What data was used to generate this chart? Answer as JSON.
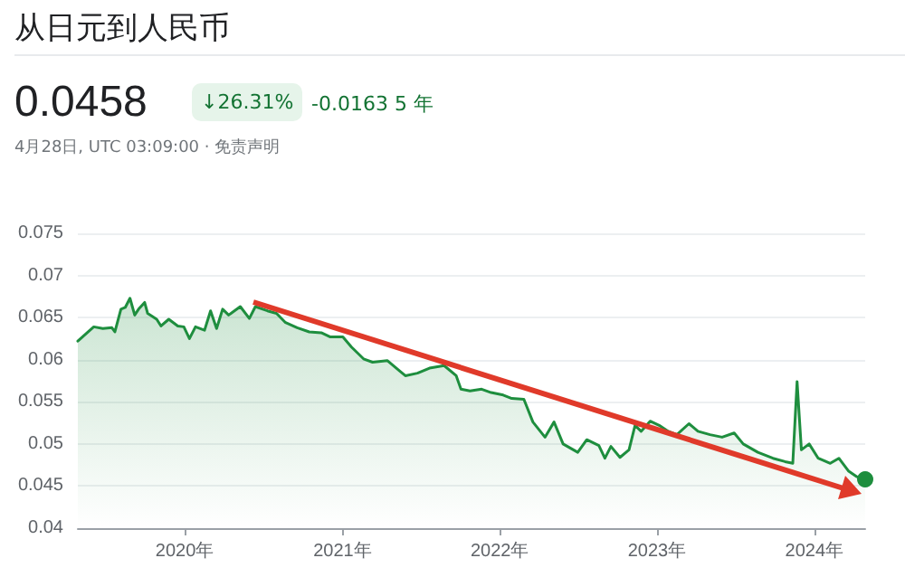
{
  "chart_data": {
    "type": "area",
    "title": "从日元到人民币",
    "annotations": [
      "0.0458",
      "↓26.31%",
      "-0.0163 5 年",
      "4月28日, UTC 03:09:00 · 免责声明"
    ],
    "x": [
      "2019-04-28",
      "2019-05-22",
      "2019-06-04",
      "2019-06-25",
      "2019-07-16",
      "2019-07-23",
      "2019-08-06",
      "2019-08-16",
      "2019-08-27",
      "2019-09-07",
      "2019-09-16",
      "2019-09-30",
      "2019-10-07",
      "2019-10-28",
      "2019-11-07",
      "2019-11-25",
      "2019-12-16",
      "2019-12-30",
      "2020-01-12",
      "2020-01-26",
      "2020-02-16",
      "2020-03-01",
      "2020-03-15",
      "2020-03-29",
      "2020-04-12",
      "2020-05-09",
      "2020-05-30",
      "2020-06-13",
      "2020-07-11",
      "2020-08-01",
      "2020-08-22",
      "2020-09-18",
      "2020-10-16",
      "2020-11-13",
      "2020-12-04",
      "2021-01-02",
      "2021-01-22",
      "2021-02-19",
      "2021-03-12",
      "2021-04-15",
      "2021-05-13",
      "2021-05-27",
      "2021-06-24",
      "2021-07-22",
      "2021-08-25",
      "2021-09-22",
      "2021-10-03",
      "2021-10-24",
      "2021-11-20",
      "2021-12-12",
      "2022-01-09",
      "2022-01-29",
      "2022-02-26",
      "2022-03-19",
      "2022-04-16",
      "2022-05-07",
      "2022-05-28",
      "2022-07-01",
      "2022-07-22",
      "2022-08-19",
      "2022-09-02",
      "2022-09-16",
      "2022-10-07",
      "2022-10-28",
      "2022-11-11",
      "2022-11-25",
      "2022-12-16",
      "2023-01-06",
      "2023-01-27",
      "2023-02-16",
      "2023-03-16",
      "2023-04-06",
      "2023-05-04",
      "2023-06-01",
      "2023-06-29",
      "2023-07-20",
      "2023-08-23",
      "2023-09-27",
      "2023-10-25",
      "2023-11-12",
      "2023-11-22",
      "2023-12-02",
      "2023-12-20",
      "2024-01-10",
      "2024-02-07",
      "2024-02-27",
      "2024-03-20",
      "2024-04-09",
      "2024-04-28"
    ],
    "series": [
      {
        "color": "#1e8e3e",
        "values": [
          0.0622,
          0.0633,
          0.0639,
          0.0637,
          0.0638,
          0.0633,
          0.066,
          0.0662,
          0.0673,
          0.0653,
          0.066,
          0.0668,
          0.0655,
          0.0648,
          0.064,
          0.0648,
          0.064,
          0.0639,
          0.0625,
          0.0639,
          0.0635,
          0.0658,
          0.0637,
          0.066,
          0.0653,
          0.0663,
          0.0649,
          0.0663,
          0.0658,
          0.0655,
          0.0644,
          0.0638,
          0.0633,
          0.0632,
          0.0627,
          0.0627,
          0.0615,
          0.0601,
          0.0597,
          0.0599,
          0.0587,
          0.0581,
          0.0584,
          0.059,
          0.0593,
          0.0581,
          0.0565,
          0.0563,
          0.0565,
          0.0561,
          0.0558,
          0.0554,
          0.0553,
          0.0526,
          0.0508,
          0.0526,
          0.05,
          0.049,
          0.0505,
          0.0498,
          0.0483,
          0.0497,
          0.0484,
          0.0493,
          0.0522,
          0.0515,
          0.0527,
          0.0522,
          0.0515,
          0.0511,
          0.0524,
          0.0515,
          0.0511,
          0.0508,
          0.0513,
          0.05,
          0.049,
          0.0483,
          0.0479,
          0.0477,
          0.0574,
          0.0493,
          0.05,
          0.0483,
          0.0477,
          0.0483,
          0.0468,
          0.0461,
          0.0458
        ]
      }
    ],
    "xlim": [
      "2019-04-28",
      "2024-04-28"
    ],
    "xticks": [
      {
        "value": "2020",
        "label": "2020年"
      },
      {
        "value": "2021",
        "label": "2021年"
      },
      {
        "value": "2022",
        "label": "2022年"
      },
      {
        "value": "2023",
        "label": "2023年"
      },
      {
        "value": "2024",
        "label": "2024年"
      }
    ],
    "ylim": [
      0.04,
      0.075
    ],
    "yticks": [
      0.04,
      0.045,
      0.05,
      0.055,
      0.06,
      0.065,
      0.07,
      0.075
    ],
    "grid": "y",
    "marker": "none",
    "line_style": "solid"
  }
}
